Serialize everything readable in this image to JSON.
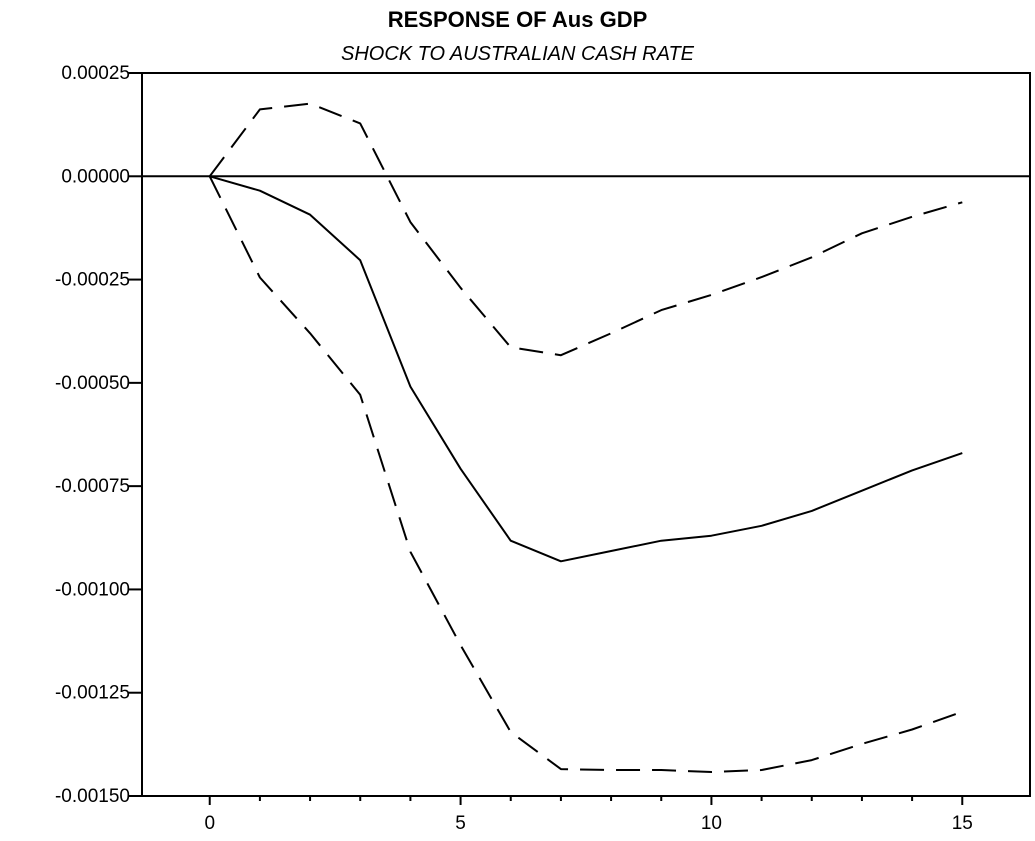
{
  "chart_data": {
    "type": "line",
    "title": "RESPONSE OF Aus GDP",
    "subtitle": "SHOCK TO AUSTRALIAN CASH RATE",
    "xlabel": "",
    "ylabel": "",
    "x": [
      0,
      1,
      2,
      3,
      4,
      5,
      6,
      7,
      8,
      9,
      10,
      11,
      12,
      13,
      14,
      15
    ],
    "xlim": [
      -1.35,
      16.35
    ],
    "ylim": [
      -0.0015,
      0.00025
    ],
    "x_ticks": [
      "0",
      "5",
      "10",
      "15"
    ],
    "y_ticks": [
      "0.00025",
      "0.00000",
      "-0.00025",
      "-0.00050",
      "-0.00075",
      "-0.00100",
      "-0.00125",
      "-0.00150"
    ],
    "zero_line": true,
    "grid": false,
    "legend": "none",
    "series": [
      {
        "style": "solid",
        "values": [
          0.0,
          -3.5e-05,
          -9.3e-05,
          -0.000203,
          -0.000509,
          -0.000708,
          -0.000882,
          -0.000932,
          -0.000907,
          -0.000882,
          -0.00087,
          -0.000846,
          -0.00081,
          -0.000761,
          -0.000712,
          -0.00067
        ]
      },
      {
        "style": "dashed",
        "values": [
          0.0,
          0.000162,
          0.000176,
          0.000128,
          -0.000111,
          -0.00027,
          -0.000414,
          -0.000433,
          -0.00038,
          -0.000324,
          -0.000287,
          -0.000244,
          -0.000196,
          -0.000138,
          -9.8e-05,
          -6.3e-05
        ]
      },
      {
        "style": "dashed",
        "values": [
          0.0,
          -0.000245,
          -0.00038,
          -0.000529,
          -0.000909,
          -0.001135,
          -0.001345,
          -0.001435,
          -0.001437,
          -0.001437,
          -0.001442,
          -0.001437,
          -0.001413,
          -0.001374,
          -0.001339,
          -0.001296
        ]
      }
    ]
  }
}
